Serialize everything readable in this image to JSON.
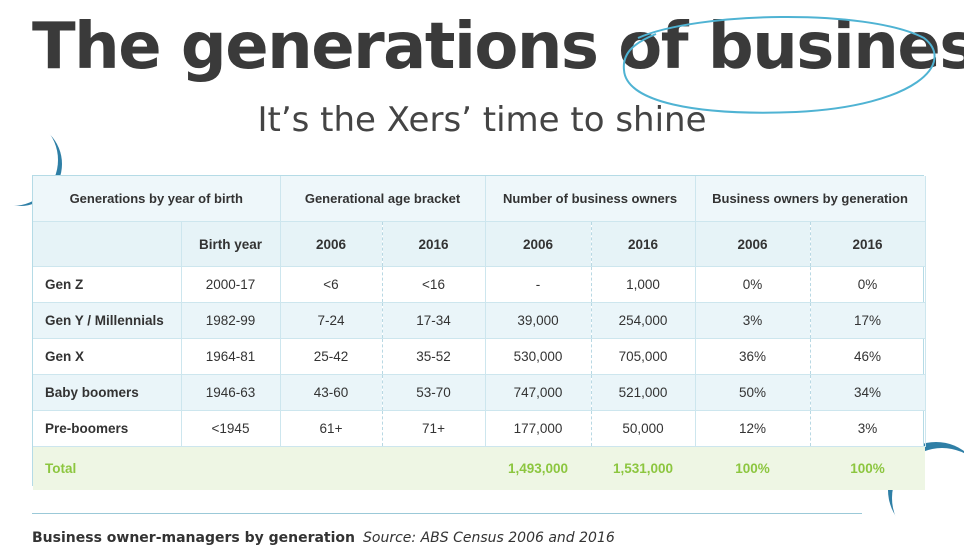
{
  "header": {
    "title": "The generations of business",
    "subtitle": "It’s the Xers’ time to shine"
  },
  "table": {
    "group_headers": [
      "Generations by year of birth",
      "Generational age bracket",
      "Number of business owners",
      "Business owners by generation"
    ],
    "sub_headers": [
      "",
      "Birth year",
      "2006",
      "2016",
      "2006",
      "2016",
      "2006",
      "2016"
    ],
    "rows": [
      [
        "Gen Z",
        "2000-17",
        "<6",
        "<16",
        "-",
        "1,000",
        "0%",
        "0%"
      ],
      [
        "Gen Y / Millennials",
        "1982-99",
        "7-24",
        "17-34",
        "39,000",
        "254,000",
        "3%",
        "17%"
      ],
      [
        "Gen X",
        "1964-81",
        "25-42",
        "35-52",
        "530,000",
        "705,000",
        "36%",
        "46%"
      ],
      [
        "Baby boomers",
        "1946-63",
        "43-60",
        "53-70",
        "747,000",
        "521,000",
        "50%",
        "34%"
      ],
      [
        "Pre-boomers",
        "<1945",
        "61+",
        "71+",
        "177,000",
        "50,000",
        "12%",
        "3%"
      ]
    ],
    "total": [
      "Total",
      "",
      "",
      "",
      "1,493,000",
      "1,531,000",
      "100%",
      "100%"
    ]
  },
  "chart_data": {
    "type": "table",
    "title": "The generations of business",
    "subtitle": "It’s the Xers’ time to shine",
    "columns": [
      "Generation",
      "Birth year",
      "Age bracket 2006",
      "Age bracket 2016",
      "Business owners 2006",
      "Business owners 2016",
      "Share 2006",
      "Share 2016"
    ],
    "rows": [
      [
        "Gen Z",
        "2000-17",
        "<6",
        "<16",
        null,
        1000,
        0,
        0
      ],
      [
        "Gen Y / Millennials",
        "1982-99",
        "7-24",
        "17-34",
        39000,
        254000,
        3,
        17
      ],
      [
        "Gen X",
        "1964-81",
        "25-42",
        "35-52",
        530000,
        705000,
        36,
        46
      ],
      [
        "Baby boomers",
        "1946-63",
        "43-60",
        "53-70",
        747000,
        521000,
        50,
        34
      ],
      [
        "Pre-boomers",
        "<1945",
        "61+",
        "71+",
        177000,
        50000,
        12,
        3
      ]
    ],
    "total": [
      "Total",
      null,
      null,
      null,
      1493000,
      1531000,
      100,
      100
    ]
  },
  "footer": {
    "caption": "Business owner-managers by generation",
    "source": "Source: ABS Census 2006 and 2016"
  },
  "colors": {
    "title": "#3a3a3a",
    "accent_blue": "#4fb3d3",
    "deco_dark_blue": "#2f7fa6",
    "table_tint": "#eaf5f9",
    "total_green": "#8cc63f",
    "total_bg": "#eef6e4"
  }
}
